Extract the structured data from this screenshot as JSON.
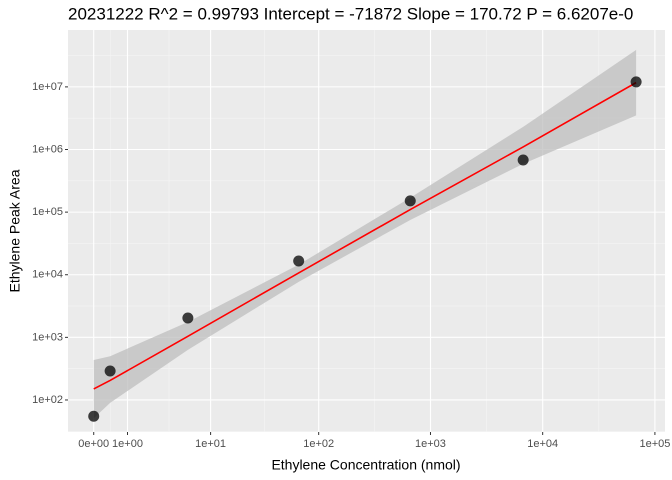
{
  "chart_data": {
    "type": "scatter",
    "title": "20231222 R^2 =  0.99793 Intercept = -71872  Slope = 170.72  P = 6.6207e-0",
    "x_label": "Ethylene Concentration (nmol)",
    "y_label": "Ethylene Peak Area",
    "xscale": "log1p",
    "yscale": "log",
    "grid": true,
    "points": {
      "color": "#000000",
      "x": [
        0,
        0.4,
        5.9,
        66,
        660,
        6700,
        68000
      ],
      "y": [
        55,
        290,
        2040,
        16600,
        151000,
        680000,
        12000000
      ]
    },
    "fit": {
      "color": "#ff0000",
      "band_color": "#bebebe",
      "x": [
        0,
        0.4,
        5.9,
        66,
        660,
        6700,
        68000
      ],
      "y": [
        150,
        205,
        1040,
        10700,
        110000,
        1100000,
        11700000
      ],
      "lower": [
        51,
        90,
        630,
        7700,
        75000,
        590000,
        3500000
      ],
      "upper": [
        435,
        500,
        1760,
        14500,
        170000,
        2300000,
        39000000
      ]
    },
    "xlim": [
      -0.41,
      123000
    ],
    "ylim": [
      30.8,
      81000000
    ],
    "xticks": [
      {
        "value": 0,
        "label": "0e+00"
      },
      {
        "value": 1,
        "label": "1e+00"
      },
      {
        "value": 10,
        "label": "1e+01"
      },
      {
        "value": 100,
        "label": "1e+02"
      },
      {
        "value": 1000,
        "label": "1e+03"
      },
      {
        "value": 10000,
        "label": "1e+04"
      },
      {
        "value": 100000,
        "label": "1e+05"
      }
    ],
    "yticks": [
      {
        "value": 100,
        "label": "1e+02"
      },
      {
        "value": 1000,
        "label": "1e+03"
      },
      {
        "value": 10000,
        "label": "1e+04"
      },
      {
        "value": 100000,
        "label": "1e+05"
      },
      {
        "value": 1000000,
        "label": "1e+06"
      },
      {
        "value": 10000000,
        "label": "1e+07"
      }
    ]
  }
}
